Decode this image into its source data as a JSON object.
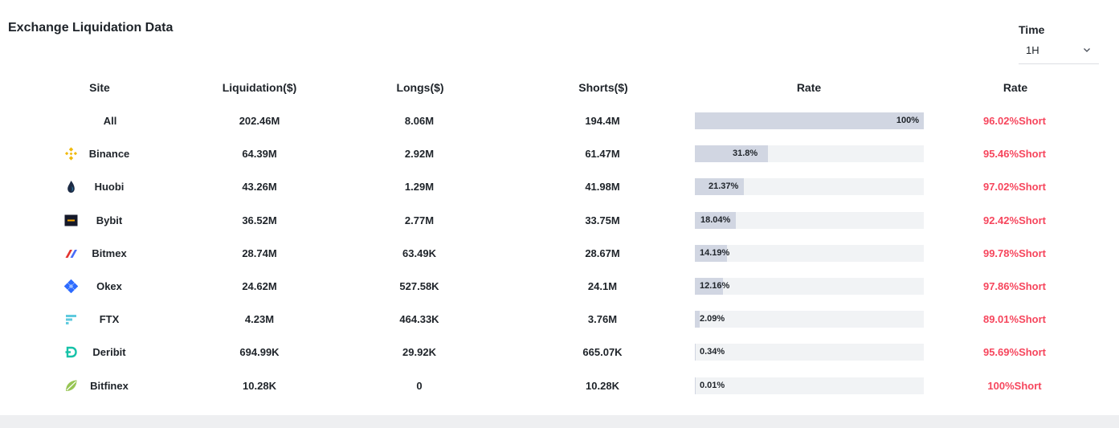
{
  "title": "Exchange Liquidation Data",
  "time_filter": {
    "label": "Time",
    "value": "1H"
  },
  "columns": [
    "Site",
    "Liquidation($)",
    "Longs($)",
    "Shorts($)",
    "Rate",
    "Rate"
  ],
  "rows": [
    {
      "site": "All",
      "icon": "",
      "liquidation": "202.46M",
      "longs": "8.06M",
      "shorts": "194.4M",
      "bar_label": "100%",
      "bar_fraction": 1.0,
      "short_rate": "96.02%Short"
    },
    {
      "site": "Binance",
      "icon": "binance-icon",
      "liquidation": "64.39M",
      "longs": "2.92M",
      "shorts": "61.47M",
      "bar_label": "31.8%",
      "bar_fraction": 0.318,
      "short_rate": "95.46%Short"
    },
    {
      "site": "Huobi",
      "icon": "huobi-icon",
      "liquidation": "43.26M",
      "longs": "1.29M",
      "shorts": "41.98M",
      "bar_label": "21.37%",
      "bar_fraction": 0.2137,
      "short_rate": "97.02%Short"
    },
    {
      "site": "Bybit",
      "icon": "bybit-icon",
      "liquidation": "36.52M",
      "longs": "2.77M",
      "shorts": "33.75M",
      "bar_label": "18.04%",
      "bar_fraction": 0.1804,
      "short_rate": "92.42%Short"
    },
    {
      "site": "Bitmex",
      "icon": "bitmex-icon",
      "liquidation": "28.74M",
      "longs": "63.49K",
      "shorts": "28.67M",
      "bar_label": "14.19%",
      "bar_fraction": 0.1419,
      "short_rate": "99.78%Short"
    },
    {
      "site": "Okex",
      "icon": "okex-icon",
      "liquidation": "24.62M",
      "longs": "527.58K",
      "shorts": "24.1M",
      "bar_label": "12.16%",
      "bar_fraction": 0.1216,
      "short_rate": "97.86%Short"
    },
    {
      "site": "FTX",
      "icon": "ftx-icon",
      "liquidation": "4.23M",
      "longs": "464.33K",
      "shorts": "3.76M",
      "bar_label": "2.09%",
      "bar_fraction": 0.0209,
      "short_rate": "89.01%Short"
    },
    {
      "site": "Deribit",
      "icon": "deribit-icon",
      "liquidation": "694.99K",
      "longs": "29.92K",
      "shorts": "665.07K",
      "bar_label": "0.34%",
      "bar_fraction": 0.0034,
      "short_rate": "95.69%Short"
    },
    {
      "site": "Bitfinex",
      "icon": "bitfinex-icon",
      "liquidation": "10.28K",
      "longs": "0",
      "shorts": "10.28K",
      "bar_label": "0.01%",
      "bar_fraction": 0.0001,
      "short_rate": "100%Short"
    }
  ],
  "colors": {
    "short_rate_text": "#f6465d",
    "bar_fill": "#d1d6e2",
    "bar_track": "#f1f3f5",
    "text": "#1e2329"
  }
}
